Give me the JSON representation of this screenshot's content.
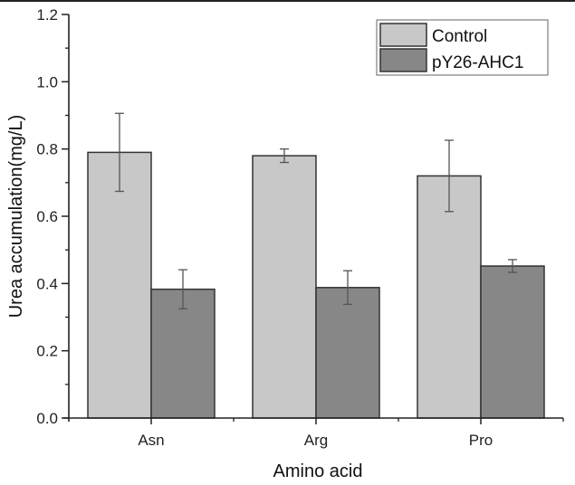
{
  "chart_data": {
    "type": "bar",
    "title": "",
    "xlabel": "Amino acid",
    "ylabel": "Urea accumulation(mg/L)",
    "ylim": [
      0,
      1.2
    ],
    "yticks": [
      "0.0",
      "0.2",
      "0.4",
      "0.6",
      "0.8",
      "1.0",
      "1.2"
    ],
    "ytick_values": [
      0,
      0.2,
      0.4,
      0.6,
      0.8,
      1.0,
      1.2
    ],
    "yminor_step": 0.1,
    "categories": [
      "Asn",
      "Arg",
      "Pro"
    ],
    "grid": false,
    "legend_position": "top-right",
    "series": [
      {
        "name": "Control",
        "color": "#c8c8c8",
        "values": [
          0.79,
          0.78,
          0.72
        ],
        "errors": [
          0.116,
          0.02,
          0.106
        ]
      },
      {
        "name": "pY26-AHC1",
        "color": "#878787",
        "values": [
          0.383,
          0.388,
          0.452
        ],
        "errors": [
          0.058,
          0.05,
          0.019
        ]
      }
    ]
  }
}
